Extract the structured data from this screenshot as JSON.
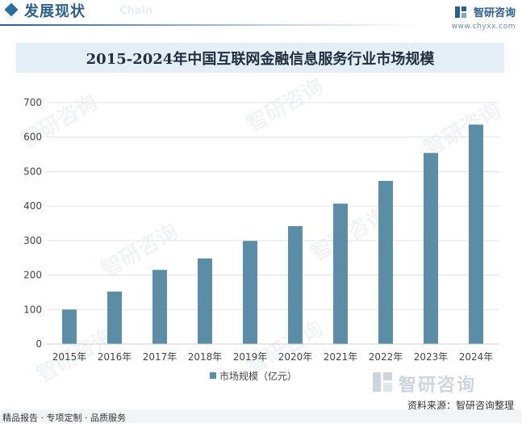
{
  "header": {
    "section_title": "发展现状",
    "section_sub": "Chain",
    "brand_name": "智研咨询",
    "brand_url": "www.chyxx.com"
  },
  "watermark_text": "智研咨询",
  "chart_data": {
    "type": "bar",
    "title": "2015-2024年中国互联网金融信息服务行业市场规模",
    "categories": [
      "2015年",
      "2016年",
      "2017年",
      "2018年",
      "2019年",
      "2020年",
      "2021年",
      "2022年",
      "2023年",
      "2024年"
    ],
    "series": [
      {
        "name": "市场规模（亿元）",
        "values": [
          100,
          152,
          215,
          248,
          299,
          342,
          407,
          473,
          554,
          636
        ]
      }
    ],
    "ylim": [
      0,
      700
    ],
    "yticks": [
      0,
      100,
      200,
      300,
      400,
      500,
      600,
      700
    ],
    "grid": true,
    "legend": "bottom-center",
    "bar_color": "#5b8ea6"
  },
  "footer": {
    "logo_text": "智研咨询",
    "source": "资料来源：智研咨询整理",
    "services": "精品报告 · 专项定制 · 品质服务"
  }
}
